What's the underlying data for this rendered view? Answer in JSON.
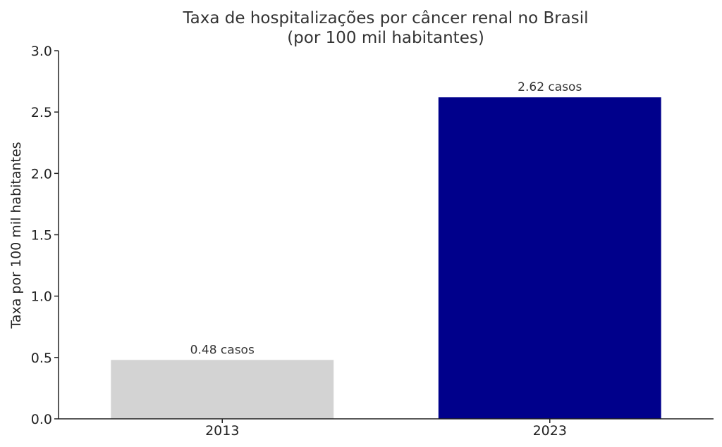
{
  "chart_data": {
    "type": "bar",
    "title": [
      "Taxa de hospitalizações por câncer renal no Brasil",
      "(por 100 mil habitantes)"
    ],
    "xlabel": "",
    "ylabel": "Taxa por 100 mil habitantes",
    "categories": [
      "2013",
      "2023"
    ],
    "values": [
      0.48,
      2.62
    ],
    "bar_labels": [
      "0.48 casos",
      "2.62 casos"
    ],
    "bar_colors": [
      "#d3d3d3",
      "#00008b"
    ],
    "ylim": [
      0,
      3.0
    ],
    "yticks": [
      0.0,
      0.5,
      1.0,
      1.5,
      2.0,
      2.5,
      3.0
    ],
    "ytick_labels": [
      "0.0",
      "0.5",
      "1.0",
      "1.5",
      "2.0",
      "2.5",
      "3.0"
    ],
    "grid": false,
    "legend": "none"
  }
}
